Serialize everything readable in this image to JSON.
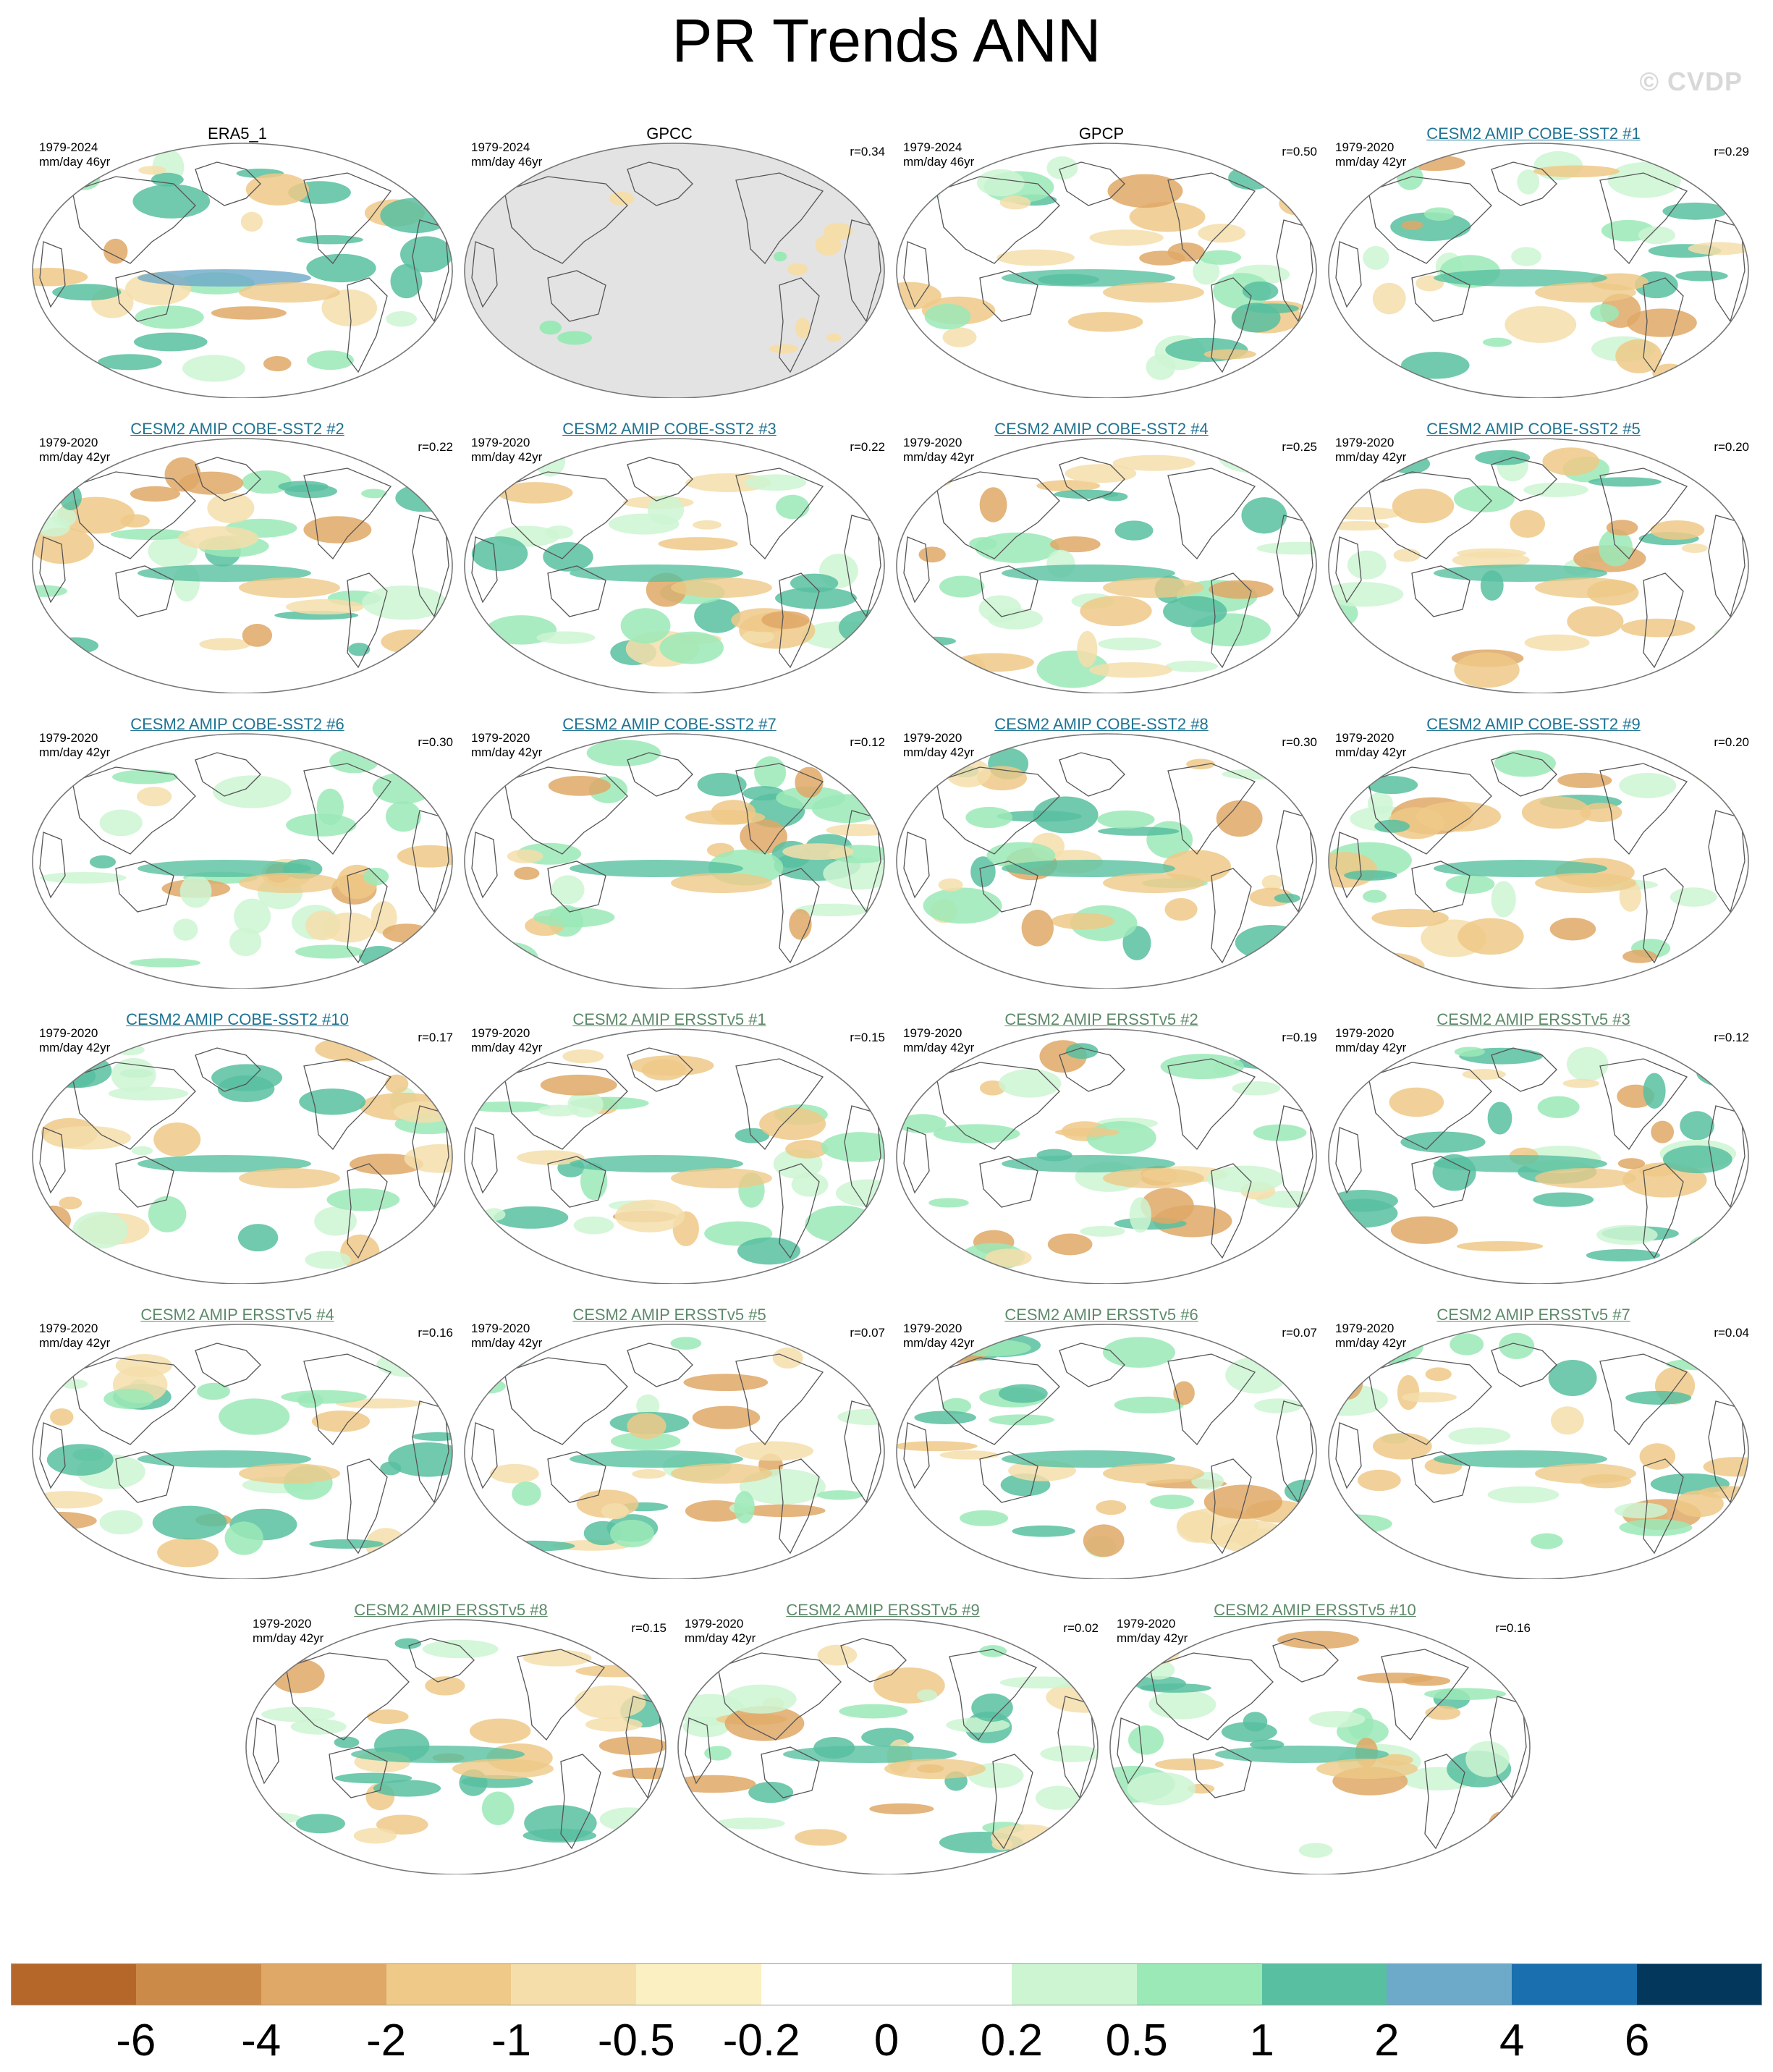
{
  "title": "PR Trends ANN",
  "watermark": "© CVDP",
  "panels": [
    {
      "name": "ERA5_1",
      "kind": "obs",
      "period": "1979-2024",
      "units": "mm/day 46yr",
      "r": ""
    },
    {
      "name": "GPCC",
      "kind": "obs",
      "period": "1979-2024",
      "units": "mm/day 46yr",
      "r": "r=0.34"
    },
    {
      "name": "GPCP",
      "kind": "obs",
      "period": "1979-2024",
      "units": "mm/day 46yr",
      "r": "r=0.50"
    },
    {
      "name": "CESM2 AMIP COBE-SST2 #1",
      "kind": "cobe",
      "period": "1979-2020",
      "units": "mm/day 42yr",
      "r": "r=0.29"
    },
    {
      "name": "CESM2 AMIP COBE-SST2 #2",
      "kind": "cobe",
      "period": "1979-2020",
      "units": "mm/day 42yr",
      "r": "r=0.22"
    },
    {
      "name": "CESM2 AMIP COBE-SST2 #3",
      "kind": "cobe",
      "period": "1979-2020",
      "units": "mm/day 42yr",
      "r": "r=0.22"
    },
    {
      "name": "CESM2 AMIP COBE-SST2 #4",
      "kind": "cobe",
      "period": "1979-2020",
      "units": "mm/day 42yr",
      "r": "r=0.25"
    },
    {
      "name": "CESM2 AMIP COBE-SST2 #5",
      "kind": "cobe",
      "period": "1979-2020",
      "units": "mm/day 42yr",
      "r": "r=0.20"
    },
    {
      "name": "CESM2 AMIP COBE-SST2 #6",
      "kind": "cobe",
      "period": "1979-2020",
      "units": "mm/day 42yr",
      "r": "r=0.30"
    },
    {
      "name": "CESM2 AMIP COBE-SST2 #7",
      "kind": "cobe",
      "period": "1979-2020",
      "units": "mm/day 42yr",
      "r": "r=0.12"
    },
    {
      "name": "CESM2 AMIP COBE-SST2 #8",
      "kind": "cobe",
      "period": "1979-2020",
      "units": "mm/day 42yr",
      "r": "r=0.30"
    },
    {
      "name": "CESM2 AMIP COBE-SST2 #9",
      "kind": "cobe",
      "period": "1979-2020",
      "units": "mm/day 42yr",
      "r": "r=0.20"
    },
    {
      "name": "CESM2 AMIP COBE-SST2 #10",
      "kind": "cobe",
      "period": "1979-2020",
      "units": "mm/day 42yr",
      "r": "r=0.17"
    },
    {
      "name": "CESM2 AMIP ERSSTv5 #1",
      "kind": "ersst",
      "period": "1979-2020",
      "units": "mm/day 42yr",
      "r": "r=0.15"
    },
    {
      "name": "CESM2 AMIP ERSSTv5 #2",
      "kind": "ersst",
      "period": "1979-2020",
      "units": "mm/day 42yr",
      "r": "r=0.19"
    },
    {
      "name": "CESM2 AMIP ERSSTv5 #3",
      "kind": "ersst",
      "period": "1979-2020",
      "units": "mm/day 42yr",
      "r": "r=0.12"
    },
    {
      "name": "CESM2 AMIP ERSSTv5 #4",
      "kind": "ersst",
      "period": "1979-2020",
      "units": "mm/day 42yr",
      "r": "r=0.16"
    },
    {
      "name": "CESM2 AMIP ERSSTv5 #5",
      "kind": "ersst",
      "period": "1979-2020",
      "units": "mm/day 42yr",
      "r": "r=0.07"
    },
    {
      "name": "CESM2 AMIP ERSSTv5 #6",
      "kind": "ersst",
      "period": "1979-2020",
      "units": "mm/day 42yr",
      "r": "r=0.07"
    },
    {
      "name": "CESM2 AMIP ERSSTv5 #7",
      "kind": "ersst",
      "period": "1979-2020",
      "units": "mm/day 42yr",
      "r": "r=0.04"
    },
    {
      "name": "CESM2 AMIP ERSSTv5 #8",
      "kind": "ersst",
      "period": "1979-2020",
      "units": "mm/day 42yr",
      "r": "r=0.15"
    },
    {
      "name": "CESM2 AMIP ERSSTv5 #9",
      "kind": "ersst",
      "period": "1979-2020",
      "units": "mm/day 42yr",
      "r": "r=0.02"
    },
    {
      "name": "CESM2 AMIP ERSSTv5 #10",
      "kind": "ersst",
      "period": "1979-2020",
      "units": "mm/day 42yr",
      "r": "r=0.16"
    }
  ],
  "colorbar": {
    "labels": [
      "-6",
      "-4",
      "-2",
      "-1",
      "-0.5",
      "-0.2",
      "0",
      "0.2",
      "0.5",
      "1",
      "2",
      "4",
      "6"
    ],
    "colors": [
      "#b5672a",
      "#cc8a48",
      "#dfa866",
      "#eec987",
      "#f5deaa",
      "#fbf0c2",
      "#ffffff",
      "#ffffff",
      "#cdf5d2",
      "#9be9b7",
      "#58c0a0",
      "#6da9c8",
      "#1a6fae",
      "#03375c"
    ]
  },
  "colors": {
    "cobe_title": "#1f7393",
    "ersst_title": "#5e8a6a",
    "land_mask": "#e3e3e3"
  }
}
